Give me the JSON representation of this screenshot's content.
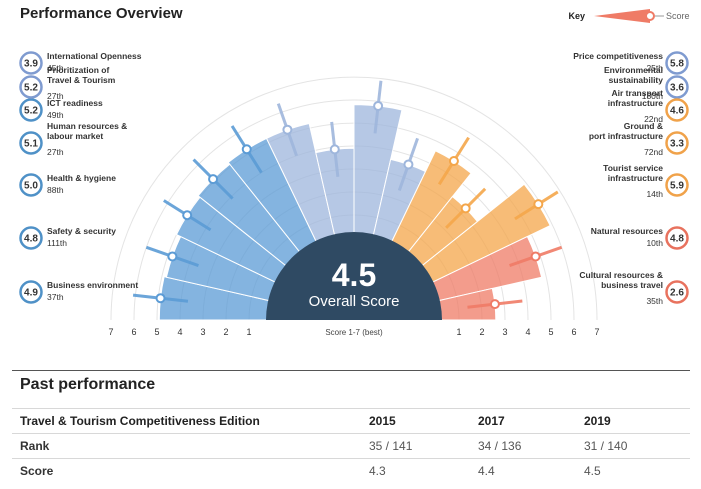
{
  "title": "Performance Overview",
  "key": {
    "label": "Key",
    "score_label": "Score"
  },
  "center": {
    "value": "4.5",
    "label": "Overall Score"
  },
  "axis_note": "Score 1-7 (best)",
  "colors": {
    "blue": "#5b9bd5",
    "lightblue": "#9eb6dc",
    "orange": "#f4a64a",
    "salmon": "#ef7b66",
    "center": "#2f4a63"
  },
  "chart_data": {
    "type": "polar-bar",
    "scale": [
      1,
      7
    ],
    "ticks": [
      "1",
      "2",
      "3",
      "4",
      "5",
      "6",
      "7"
    ],
    "pillars": [
      {
        "name": "Business environment",
        "score": "4.9",
        "rank": "37th",
        "value": 4.9,
        "color": "blue"
      },
      {
        "name": "Safety & security",
        "score": "4.8",
        "rank": "111th",
        "value": 4.8,
        "color": "blue"
      },
      {
        "name": "Health & hygiene",
        "score": "5.0",
        "rank": "88th",
        "value": 5.0,
        "color": "blue"
      },
      {
        "name": "Human resources & labour market",
        "score": "5.1",
        "rank": "27th",
        "value": 5.1,
        "color": "blue"
      },
      {
        "name": "ICT readiness",
        "score": "5.2",
        "rank": "49th",
        "value": 5.2,
        "color": "blue"
      },
      {
        "name": "Prioritization of Travel & Tourism",
        "score": "5.2",
        "rank": "27th",
        "value": 5.2,
        "color": "lightblue"
      },
      {
        "name": "International Openness",
        "score": "3.9",
        "rank": "45th",
        "value": 3.9,
        "color": "lightblue"
      },
      {
        "name": "Price competitiveness",
        "score": "5.8",
        "rank": "25th",
        "value": 5.8,
        "color": "lightblue"
      },
      {
        "name": "Environmental sustainability",
        "score": "3.6",
        "rank": "130th",
        "value": 3.6,
        "color": "lightblue"
      },
      {
        "name": "Air transport infrastructure",
        "score": "4.6",
        "rank": "22nd",
        "value": 4.6,
        "color": "orange"
      },
      {
        "name": "Ground & port infrastructure",
        "score": "3.3",
        "rank": "72nd",
        "value": 3.3,
        "color": "orange"
      },
      {
        "name": "Tourist service infrastructure",
        "score": "5.9",
        "rank": "14th",
        "value": 5.9,
        "color": "orange"
      },
      {
        "name": "Natural resources",
        "score": "4.8",
        "rank": "10th",
        "value": 4.8,
        "color": "salmon"
      },
      {
        "name": "Cultural resources & business travel",
        "score": "2.6",
        "rank": "35th",
        "value": 2.6,
        "color": "salmon"
      }
    ]
  },
  "past": {
    "title": "Past performance",
    "header": "Travel & Tourism Competitiveness Edition",
    "years": [
      "2015",
      "2017",
      "2019"
    ],
    "rows": [
      {
        "label": "Rank",
        "values": [
          "35 / 141",
          "34 / 136",
          "31 / 140"
        ]
      },
      {
        "label": "Score",
        "values": [
          "4.3",
          "4.4",
          "4.5"
        ]
      }
    ]
  }
}
